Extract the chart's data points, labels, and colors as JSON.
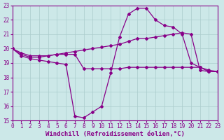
{
  "xlabel": "Windchill (Refroidissement éolien,°C)",
  "xlim": [
    0,
    23
  ],
  "ylim": [
    15,
    23
  ],
  "yticks": [
    15,
    16,
    17,
    18,
    19,
    20,
    21,
    22,
    23
  ],
  "xticks": [
    0,
    1,
    2,
    3,
    4,
    5,
    6,
    7,
    8,
    9,
    10,
    11,
    12,
    13,
    14,
    15,
    16,
    17,
    18,
    19,
    20,
    21,
    22,
    23
  ],
  "bg_color": "#cce8e8",
  "line_color": "#880088",
  "grid_color": "#aacccc",
  "line1_x": [
    0,
    1,
    2,
    3,
    4,
    5,
    6,
    7,
    8,
    9,
    10,
    11,
    12,
    13,
    14,
    15,
    16,
    17,
    18,
    19,
    20,
    21,
    22,
    23
  ],
  "line1_y": [
    20.0,
    19.5,
    19.3,
    19.2,
    19.1,
    19.0,
    18.9,
    15.3,
    15.2,
    15.6,
    16.0,
    18.3,
    20.8,
    22.4,
    22.8,
    22.8,
    22.0,
    21.6,
    21.5,
    21.0,
    19.0,
    18.7,
    18.4,
    18.4
  ],
  "line2_x": [
    0,
    1,
    2,
    3,
    4,
    5,
    6,
    7,
    8,
    9,
    10,
    11,
    12,
    13,
    14,
    15,
    16,
    17,
    18,
    19,
    20,
    21,
    22,
    23
  ],
  "line2_y": [
    20.0,
    19.6,
    19.4,
    19.4,
    19.5,
    19.6,
    19.6,
    19.6,
    18.6,
    18.6,
    18.6,
    18.6,
    18.6,
    18.7,
    18.7,
    18.7,
    18.7,
    18.7,
    18.7,
    18.7,
    18.7,
    18.7,
    18.5,
    18.4
  ],
  "line3_x": [
    0,
    1,
    2,
    3,
    4,
    5,
    6,
    7,
    8,
    9,
    10,
    11,
    12,
    13,
    14,
    15,
    16,
    17,
    18,
    19,
    20,
    21,
    22,
    23
  ],
  "line3_y": [
    20.0,
    19.7,
    19.5,
    19.5,
    19.5,
    19.6,
    19.7,
    19.8,
    19.9,
    20.0,
    20.1,
    20.2,
    20.3,
    20.5,
    20.7,
    20.7,
    20.8,
    20.9,
    21.0,
    21.1,
    21.0,
    18.5,
    18.4,
    18.4
  ],
  "marker": "D",
  "markersize": 2.0,
  "linewidth": 0.9,
  "tick_fontsize": 5.5,
  "label_fontsize": 6.5
}
